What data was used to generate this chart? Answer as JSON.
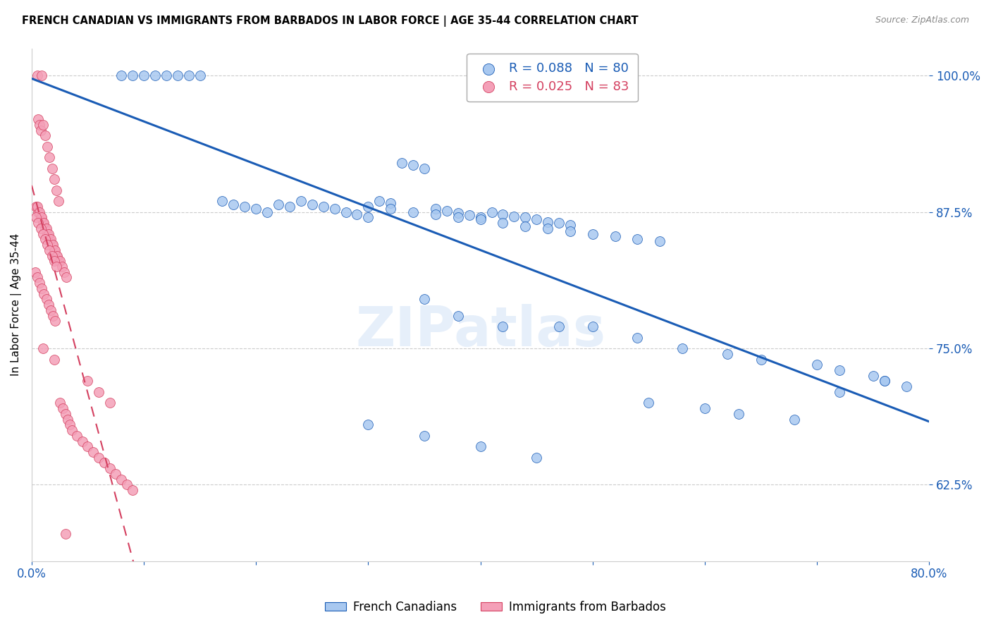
{
  "title": "FRENCH CANADIAN VS IMMIGRANTS FROM BARBADOS IN LABOR FORCE | AGE 35-44 CORRELATION CHART",
  "source": "Source: ZipAtlas.com",
  "ylabel": "In Labor Force | Age 35-44",
  "xlim": [
    0.0,
    0.8
  ],
  "ylim": [
    0.555,
    1.025
  ],
  "xticks": [
    0.0,
    0.1,
    0.2,
    0.3,
    0.4,
    0.5,
    0.6,
    0.7,
    0.8
  ],
  "xticklabels": [
    "0.0%",
    "",
    "",
    "",
    "",
    "",
    "",
    "",
    "80.0%"
  ],
  "ytick_positions": [
    0.625,
    0.75,
    0.875,
    1.0
  ],
  "yticklabels": [
    "62.5%",
    "75.0%",
    "87.5%",
    "100.0%"
  ],
  "blue_R": 0.088,
  "blue_N": 80,
  "pink_R": 0.025,
  "pink_N": 83,
  "blue_color": "#A8C8F0",
  "pink_color": "#F4A0B8",
  "blue_line_color": "#1A5CB5",
  "pink_line_color": "#D44060",
  "watermark": "ZIPatlas",
  "blue_x": [
    0.08,
    0.09,
    0.1,
    0.11,
    0.12,
    0.13,
    0.14,
    0.15,
    0.17,
    0.18,
    0.19,
    0.2,
    0.21,
    0.22,
    0.23,
    0.24,
    0.25,
    0.26,
    0.27,
    0.28,
    0.29,
    0.3,
    0.31,
    0.32,
    0.33,
    0.34,
    0.35,
    0.36,
    0.37,
    0.38,
    0.39,
    0.4,
    0.41,
    0.42,
    0.43,
    0.44,
    0.45,
    0.46,
    0.47,
    0.48,
    0.3,
    0.32,
    0.34,
    0.36,
    0.38,
    0.4,
    0.42,
    0.44,
    0.46,
    0.48,
    0.5,
    0.52,
    0.54,
    0.56,
    0.35,
    0.38,
    0.42,
    0.47,
    0.5,
    0.54,
    0.58,
    0.62,
    0.65,
    0.7,
    0.72,
    0.75,
    0.76,
    0.78,
    0.55,
    0.6,
    0.63,
    0.68,
    0.72,
    0.76,
    0.3,
    0.35,
    0.4,
    0.45
  ],
  "blue_y": [
    1.0,
    1.0,
    1.0,
    1.0,
    1.0,
    1.0,
    1.0,
    1.0,
    0.885,
    0.882,
    0.88,
    0.878,
    0.875,
    0.882,
    0.88,
    0.885,
    0.882,
    0.88,
    0.878,
    0.875,
    0.873,
    0.87,
    0.885,
    0.883,
    0.92,
    0.918,
    0.915,
    0.878,
    0.876,
    0.874,
    0.872,
    0.87,
    0.875,
    0.873,
    0.871,
    0.87,
    0.868,
    0.866,
    0.865,
    0.863,
    0.88,
    0.878,
    0.875,
    0.873,
    0.87,
    0.868,
    0.865,
    0.862,
    0.86,
    0.857,
    0.855,
    0.853,
    0.85,
    0.848,
    0.795,
    0.78,
    0.77,
    0.77,
    0.77,
    0.76,
    0.75,
    0.745,
    0.74,
    0.735,
    0.73,
    0.725,
    0.72,
    0.715,
    0.7,
    0.695,
    0.69,
    0.685,
    0.71,
    0.72,
    0.68,
    0.67,
    0.66,
    0.65
  ],
  "pink_x": [
    0.005,
    0.006,
    0.007,
    0.008,
    0.009,
    0.01,
    0.012,
    0.014,
    0.016,
    0.018,
    0.02,
    0.022,
    0.024,
    0.004,
    0.006,
    0.008,
    0.01,
    0.012,
    0.014,
    0.016,
    0.018,
    0.02,
    0.022,
    0.024,
    0.005,
    0.007,
    0.009,
    0.011,
    0.013,
    0.015,
    0.017,
    0.019,
    0.021,
    0.023,
    0.025,
    0.027,
    0.029,
    0.031,
    0.004,
    0.006,
    0.008,
    0.01,
    0.012,
    0.014,
    0.016,
    0.018,
    0.02,
    0.022,
    0.003,
    0.005,
    0.007,
    0.009,
    0.011,
    0.013,
    0.015,
    0.017,
    0.019,
    0.021,
    0.025,
    0.028,
    0.03,
    0.032,
    0.034,
    0.036,
    0.04,
    0.045,
    0.05,
    0.055,
    0.06,
    0.065,
    0.07,
    0.075,
    0.08,
    0.085,
    0.09,
    0.05,
    0.06,
    0.07,
    0.01,
    0.02,
    0.03
  ],
  "pink_y": [
    1.0,
    0.96,
    0.955,
    0.95,
    1.0,
    0.955,
    0.945,
    0.935,
    0.925,
    0.915,
    0.905,
    0.895,
    0.885,
    0.88,
    0.875,
    0.87,
    0.865,
    0.86,
    0.855,
    0.85,
    0.845,
    0.84,
    0.835,
    0.83,
    0.88,
    0.875,
    0.87,
    0.865,
    0.86,
    0.855,
    0.85,
    0.845,
    0.84,
    0.835,
    0.83,
    0.825,
    0.82,
    0.815,
    0.87,
    0.865,
    0.86,
    0.855,
    0.85,
    0.845,
    0.84,
    0.835,
    0.83,
    0.825,
    0.82,
    0.815,
    0.81,
    0.805,
    0.8,
    0.795,
    0.79,
    0.785,
    0.78,
    0.775,
    0.7,
    0.695,
    0.69,
    0.685,
    0.68,
    0.675,
    0.67,
    0.665,
    0.66,
    0.655,
    0.65,
    0.645,
    0.64,
    0.635,
    0.63,
    0.625,
    0.62,
    0.72,
    0.71,
    0.7,
    0.75,
    0.74,
    0.58
  ]
}
